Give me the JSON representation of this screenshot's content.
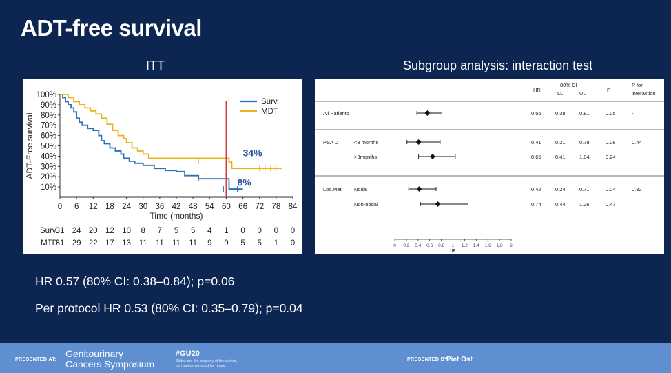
{
  "slide": {
    "title": "ADT-free survival",
    "left_heading": "ITT",
    "right_heading": "Subgroup analysis: interaction test",
    "hr_itt": "HR 0.57 (80% CI: 0.38–0.84); p=0.06",
    "hr_pp": "Per protocol HR 0.53 (80% CI: 0.35–0.79); p=0.04"
  },
  "chart_data": [
    {
      "type": "line",
      "ylabel": "ADT-Free survival",
      "xlabel": "Time (months)",
      "x_ticks": [
        "0",
        "6",
        "12",
        "18",
        "24",
        "30",
        "36",
        "42",
        "48",
        "54",
        "60",
        "66",
        "72",
        "78",
        "84"
      ],
      "y_ticks": [
        "100%",
        "90%",
        "80%",
        "70%",
        "60%",
        "50%",
        "40%",
        "30%",
        "20%",
        "10%"
      ],
      "xlim": [
        0,
        84
      ],
      "ylim": [
        0,
        100
      ],
      "legend_position": "top-right",
      "series": [
        {
          "name": "Surv.",
          "color": "#2b72b4",
          "steps": [
            [
              0,
              100
            ],
            [
              1,
              97
            ],
            [
              2,
              93
            ],
            [
              3,
              90
            ],
            [
              4,
              87
            ],
            [
              5,
              83
            ],
            [
              6,
              77
            ],
            [
              7,
              73
            ],
            [
              8,
              70
            ],
            [
              10,
              67
            ],
            [
              12,
              65
            ],
            [
              14,
              60
            ],
            [
              15,
              55
            ],
            [
              16,
              52
            ],
            [
              18,
              48
            ],
            [
              20,
              45
            ],
            [
              22,
              42
            ],
            [
              23,
              38
            ],
            [
              25,
              35
            ],
            [
              27,
              33
            ],
            [
              30,
              31
            ],
            [
              34,
              28
            ],
            [
              38,
              26
            ],
            [
              42,
              25
            ],
            [
              45,
              21
            ],
            [
              50,
              18
            ],
            [
              60,
              18
            ],
            [
              61,
              8
            ],
            [
              66,
              8
            ]
          ],
          "censored": [
            [
              50,
              18
            ],
            [
              59,
              8
            ],
            [
              64,
              8
            ]
          ]
        },
        {
          "name": "MDT",
          "color": "#e8b41e",
          "steps": [
            [
              0,
              100
            ],
            [
              3,
              97
            ],
            [
              5,
              93
            ],
            [
              7,
              90
            ],
            [
              9,
              87
            ],
            [
              11,
              84
            ],
            [
              13,
              81
            ],
            [
              15,
              77
            ],
            [
              17,
              71
            ],
            [
              19,
              65
            ],
            [
              21,
              60
            ],
            [
              23,
              57
            ],
            [
              24,
              53
            ],
            [
              26,
              48
            ],
            [
              28,
              45
            ],
            [
              30,
              42
            ],
            [
              32,
              38
            ],
            [
              40,
              38
            ],
            [
              60,
              38
            ],
            [
              61,
              34
            ],
            [
              62,
              28
            ],
            [
              80,
              28
            ]
          ],
          "censored": [
            [
              50,
              35
            ],
            [
              62,
              33
            ],
            [
              72,
              28
            ],
            [
              74,
              28
            ],
            [
              76,
              28
            ],
            [
              78,
              28
            ]
          ]
        }
      ],
      "annotations": [
        {
          "text": "34%",
          "x": 66,
          "y": 40,
          "color": "#2a56a0"
        },
        {
          "text": "8%",
          "x": 64,
          "y": 11,
          "color": "#2a56a0"
        }
      ],
      "vertical_marker": {
        "x": 60,
        "color": "#d63a3a"
      },
      "at_risk": {
        "time_points": [
          "0",
          "6",
          "12",
          "18",
          "24",
          "30",
          "36",
          "42",
          "48",
          "54",
          "60",
          "66",
          "72",
          "78",
          "84"
        ],
        "rows": [
          {
            "label": "Surv.",
            "values": [
              "31",
              "24",
              "20",
              "12",
              "10",
              "8",
              "7",
              "5",
              "5",
              "4",
              "1",
              "0",
              "0",
              "0",
              "0"
            ]
          },
          {
            "label": "MTD",
            "values": [
              "31",
              "29",
              "22",
              "17",
              "13",
              "11",
              "11",
              "11",
              "11",
              "9",
              "9",
              "5",
              "5",
              "1",
              "0"
            ]
          }
        ]
      }
    },
    {
      "type": "forest",
      "header": {
        "hr": "HR",
        "ci": "80% CI",
        "ll": "LL",
        "ul": "UL",
        "p": "P",
        "p_inter": "P for interaction"
      },
      "xlabel": "HR",
      "x_ticks": [
        "0",
        "0.2",
        "0.4",
        "0.6",
        "0.8",
        "1",
        "1.2",
        "1.4",
        "1.6",
        "1.8",
        "2"
      ],
      "xlim": [
        0,
        2
      ],
      "reference_line": 1,
      "rows": [
        {
          "group": "All Patients",
          "sub": "",
          "hr": 0.56,
          "ll": 0.38,
          "ul": 0.81,
          "hr_t": "0.56",
          "ll_t": "0.38",
          "ul_t": "0.81",
          "p": "0.05",
          "p_int": "-"
        },
        {
          "group": "PSA DT",
          "sub": "<3 months",
          "hr": 0.41,
          "ll": 0.21,
          "ul": 0.78,
          "hr_t": "0.41",
          "ll_t": "0.21",
          "ul_t": "0.78",
          "p": "0.08",
          "p_int": "0.44"
        },
        {
          "group": "",
          "sub": ">3months",
          "hr": 0.65,
          "ll": 0.41,
          "ul": 1.04,
          "hr_t": "0.65",
          "ll_t": "0.41",
          "ul_t": "1.04",
          "p": "0.24",
          "p_int": ""
        },
        {
          "group": "Loc.Met",
          "sub": "Nodal",
          "hr": 0.42,
          "ll": 0.24,
          "ul": 0.71,
          "hr_t": "0.42",
          "ll_t": "0.24",
          "ul_t": "0.71",
          "p": "0.04",
          "p_int": "0.32"
        },
        {
          "group": "",
          "sub": "Non-nodal",
          "hr": 0.74,
          "ll": 0.44,
          "ul": 1.26,
          "hr_t": "0.74",
          "ll_t": "0.44",
          "ul_t": "1.26",
          "p": "0.47",
          "p_int": ""
        }
      ]
    }
  ],
  "footer": {
    "presented_at": "PRESENTED AT:",
    "symposium_line1": "Genitourinary",
    "symposium_line2": "Cancers Symposium",
    "hashtag": "#GU20",
    "hashtag_note": "Slides are the property of the author, permission required for reuse.",
    "presented_by": "PRESENTED BY:",
    "presenter": "Piet Ost"
  },
  "colors": {
    "background": "#0c2551",
    "footer": "#5f8fd0",
    "surv": "#2b72b4",
    "mdt": "#e8b41e",
    "marker": "#d63a3a"
  }
}
